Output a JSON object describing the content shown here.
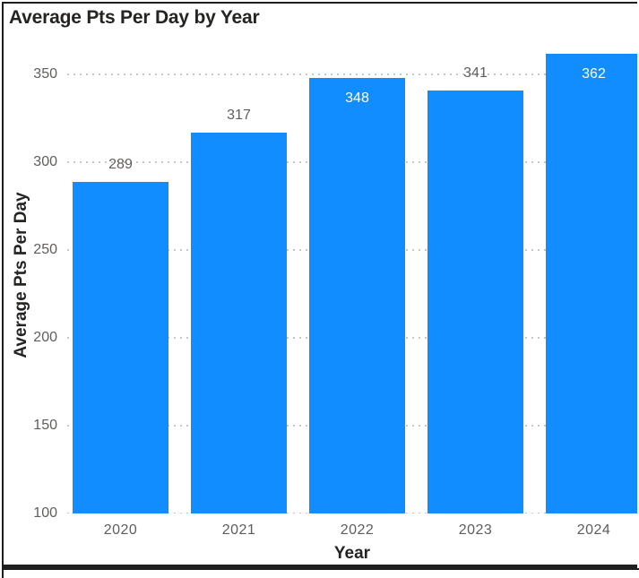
{
  "panel": {
    "title": "Average Pts Per Day by Year"
  },
  "chart_data": {
    "type": "bar",
    "title": "Average Pts Per Day by Year",
    "xlabel": "Year",
    "ylabel": "Average Pts Per Day",
    "categories": [
      "2020",
      "2021",
      "2022",
      "2023",
      "2024"
    ],
    "values": [
      289,
      317,
      348,
      341,
      362
    ],
    "label_positions": [
      "outside",
      "outside",
      "inside",
      "outside",
      "inside"
    ],
    "yticks": [
      100,
      150,
      200,
      250,
      300,
      350
    ],
    "ylim": [
      100,
      372
    ],
    "legend": "none",
    "grid": {
      "horizontal": true,
      "vertical": false,
      "style": "dotted",
      "color": "#C8C6C4"
    },
    "colors": {
      "bar": "#118DFF",
      "title": "#252423",
      "axis_title": "#252423",
      "tick_label": "#605E5C",
      "data_label_inside": "#FFFFFF",
      "data_label_outside": "#605E5C",
      "panel_border": "#1F1F1F"
    }
  }
}
